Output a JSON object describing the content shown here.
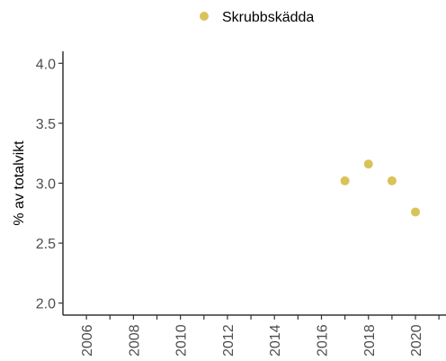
{
  "chart_data": {
    "type": "scatter",
    "title": "",
    "xlabel": "",
    "ylabel": "% av totalvikt",
    "xlim": [
      2005,
      2021.3
    ],
    "ylim": [
      1.9,
      4.1
    ],
    "x_ticks": [
      2006,
      2008,
      2010,
      2012,
      2014,
      2016,
      2018,
      2020
    ],
    "x_minor_ticks": [
      2007,
      2009,
      2011,
      2013,
      2015,
      2017,
      2019,
      2021
    ],
    "y_ticks": [
      2.0,
      2.5,
      3.0,
      3.5,
      4.0
    ],
    "y_tick_labels": [
      "2.0",
      "2.5",
      "3.0",
      "3.5",
      "4.0"
    ],
    "grid": false,
    "legend_position": "top",
    "series": [
      {
        "name": "Skrubbskädda",
        "color": "#D9C359",
        "points": [
          {
            "x": 2017,
            "y": 3.02
          },
          {
            "x": 2018,
            "y": 3.16
          },
          {
            "x": 2019,
            "y": 3.02
          },
          {
            "x": 2020,
            "y": 2.76
          }
        ]
      }
    ]
  }
}
